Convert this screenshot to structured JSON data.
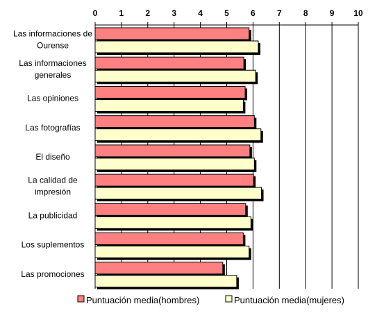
{
  "chart_data": {
    "type": "bar",
    "orientation": "horizontal",
    "title": "",
    "xlabel": "",
    "ylabel": "",
    "xlim": [
      0,
      10
    ],
    "ticks": [
      "0",
      "1",
      "2",
      "3",
      "4",
      "5",
      "6",
      "7",
      "8",
      "9",
      "10"
    ],
    "grid": "vertical gridlines at each integer",
    "legend_position": "bottom",
    "categories": [
      [
        "Las informaciones de",
        "Ourense"
      ],
      [
        "Las informaciones",
        "generales"
      ],
      [
        "Las opiniones"
      ],
      [
        "Las fotografías"
      ],
      [
        "El diseño"
      ],
      [
        "La calidad de",
        "impresión"
      ],
      [
        "La publicidad"
      ],
      [
        "Los suplementos"
      ],
      [
        "Las promociones"
      ]
    ],
    "series": [
      {
        "name": "Puntuación media(hombres)",
        "color": "#ff8080",
        "values": [
          5.85,
          5.65,
          5.7,
          6.05,
          5.88,
          6.02,
          5.72,
          5.63,
          4.85
        ]
      },
      {
        "name": "Puntuación media(mujeres)",
        "color": "#ffffcc",
        "values": [
          6.2,
          6.1,
          5.63,
          6.3,
          6.05,
          6.32,
          5.92,
          5.85,
          5.38
        ]
      }
    ]
  }
}
